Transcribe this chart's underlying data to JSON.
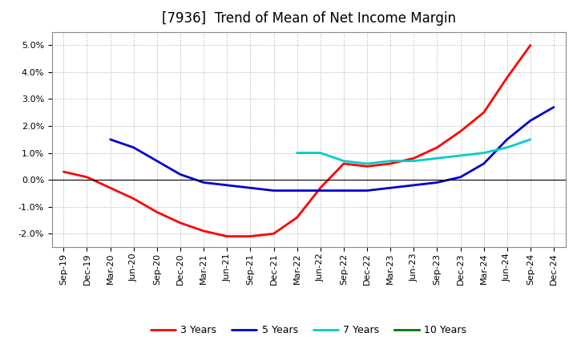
{
  "title": "[7936]  Trend of Mean of Net Income Margin",
  "x_labels": [
    "Sep-19",
    "Dec-19",
    "Mar-20",
    "Jun-20",
    "Sep-20",
    "Dec-20",
    "Mar-21",
    "Jun-21",
    "Sep-21",
    "Dec-21",
    "Mar-22",
    "Jun-22",
    "Sep-22",
    "Dec-22",
    "Mar-23",
    "Jun-23",
    "Sep-23",
    "Dec-23",
    "Mar-24",
    "Jun-24",
    "Sep-24",
    "Dec-24"
  ],
  "ylim": [
    -0.025,
    0.055
  ],
  "yticks": [
    -0.02,
    -0.01,
    0.0,
    0.01,
    0.02,
    0.03,
    0.04,
    0.05
  ],
  "series": {
    "3 Years": {
      "color": "#ff0000",
      "values": [
        0.003,
        0.001,
        -0.003,
        -0.007,
        -0.012,
        -0.016,
        -0.019,
        -0.021,
        -0.021,
        -0.02,
        -0.014,
        -0.003,
        0.006,
        0.005,
        0.006,
        0.008,
        0.012,
        0.018,
        0.025,
        0.038,
        0.05,
        null
      ]
    },
    "5 Years": {
      "color": "#0000cc",
      "values": [
        null,
        null,
        0.015,
        0.012,
        0.007,
        0.002,
        -0.001,
        -0.002,
        -0.003,
        -0.004,
        -0.004,
        -0.004,
        -0.004,
        -0.004,
        -0.003,
        -0.002,
        -0.001,
        0.001,
        0.006,
        0.015,
        0.022,
        0.027
      ]
    },
    "7 Years": {
      "color": "#00cccc",
      "values": [
        null,
        null,
        null,
        null,
        null,
        null,
        null,
        null,
        null,
        null,
        0.01,
        0.01,
        0.007,
        0.006,
        0.007,
        0.007,
        0.008,
        0.009,
        0.01,
        0.012,
        0.015,
        null
      ]
    },
    "10 Years": {
      "color": "#007700",
      "values": [
        null,
        null,
        null,
        null,
        null,
        null,
        null,
        null,
        null,
        null,
        null,
        null,
        null,
        null,
        null,
        null,
        null,
        null,
        null,
        null,
        null,
        null
      ]
    }
  },
  "legend_order": [
    "3 Years",
    "5 Years",
    "7 Years",
    "10 Years"
  ],
  "background_color": "#ffffff",
  "grid_color": "#aaaaaa",
  "title_fontsize": 12,
  "tick_fontsize": 8,
  "legend_fontsize": 9
}
